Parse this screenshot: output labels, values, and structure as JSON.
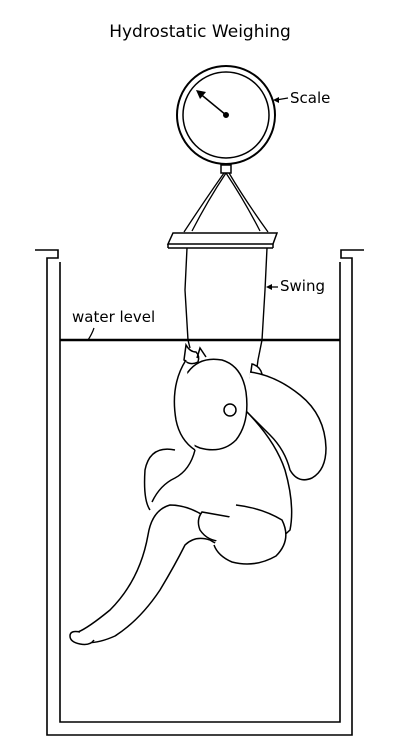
{
  "title": "Hydrostatic Weighing",
  "labels": {
    "scale": "Scale",
    "swing": "Swing",
    "water_level": "water level"
  },
  "colors": {
    "ink": "#000000",
    "background": "#ffffff"
  }
}
